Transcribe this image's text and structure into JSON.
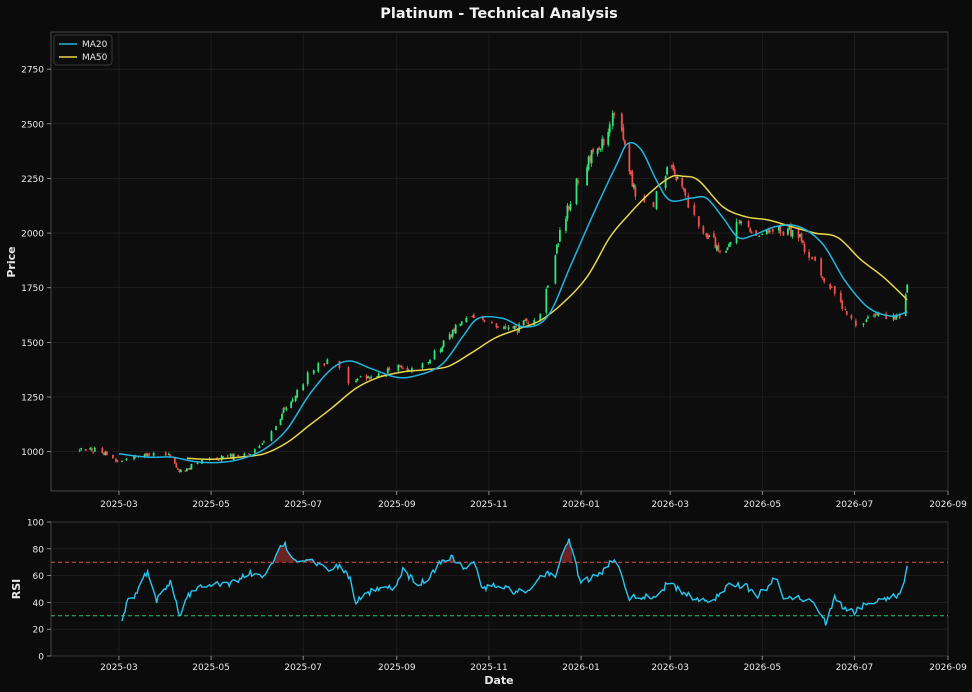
{
  "chart_data": [
    {
      "type": "candlestick",
      "title": "Platinum - Technical Analysis",
      "xlabel": "",
      "ylabel": "Price",
      "xlim": [
        "2025-01-15",
        "2026-09-01"
      ],
      "ylim": [
        820,
        2920
      ],
      "yticks": [
        1000,
        1250,
        1500,
        1750,
        2000,
        2250,
        2500,
        2750
      ],
      "xtick_labels": [
        "2025-03",
        "2025-05",
        "2025-07",
        "2025-09",
        "2025-11",
        "2026-01",
        "2026-03",
        "2026-05",
        "2026-07",
        "2026-09"
      ],
      "xtick_dates": [
        "2025-03-01",
        "2025-05-01",
        "2025-07-01",
        "2025-09-01",
        "2025-11-01",
        "2026-01-01",
        "2026-03-01",
        "2026-05-01",
        "2026-07-01",
        "2026-09-01"
      ],
      "grid": true,
      "legend_position": "top-left",
      "colors": {
        "up": "#2ee87a",
        "down": "#ef4f4f",
        "ma20": "#21b6e0",
        "ma50": "#e8d74a",
        "axes_bg": "#0d0d0d",
        "grid": "#262626",
        "text": "#e8e8e8"
      },
      "price_anchors": [
        [
          "2025-02-02",
          1005
        ],
        [
          "2025-02-15",
          1010
        ],
        [
          "2025-02-28",
          960
        ],
        [
          "2025-03-15",
          985
        ],
        [
          "2025-04-02",
          990
        ],
        [
          "2025-04-10",
          905
        ],
        [
          "2025-04-22",
          945
        ],
        [
          "2025-05-10",
          975
        ],
        [
          "2025-05-25",
          985
        ],
        [
          "2025-06-05",
          1040
        ],
        [
          "2025-06-15",
          1150
        ],
        [
          "2025-06-25",
          1260
        ],
        [
          "2025-07-05",
          1360
        ],
        [
          "2025-07-20",
          1430
        ],
        [
          "2025-08-01",
          1320
        ],
        [
          "2025-08-15",
          1340
        ],
        [
          "2025-09-01",
          1380
        ],
        [
          "2025-09-20",
          1400
        ],
        [
          "2025-10-05",
          1520
        ],
        [
          "2025-10-15",
          1620
        ],
        [
          "2025-10-25",
          1600
        ],
        [
          "2025-11-01",
          1580
        ],
        [
          "2025-11-20",
          1560
        ],
        [
          "2025-12-05",
          1640
        ],
        [
          "2025-12-20",
          2050
        ],
        [
          "2026-01-01",
          2300
        ],
        [
          "2026-01-15",
          2400
        ],
        [
          "2026-01-25",
          2600
        ],
        [
          "2026-02-05",
          2200
        ],
        [
          "2026-02-15",
          2100
        ],
        [
          "2026-03-01",
          2300
        ],
        [
          "2026-03-20",
          2050
        ],
        [
          "2026-04-05",
          1900
        ],
        [
          "2026-04-15",
          2050
        ],
        [
          "2026-04-25",
          2000
        ],
        [
          "2026-05-10",
          2020
        ],
        [
          "2026-05-25",
          1990
        ],
        [
          "2026-06-05",
          1850
        ],
        [
          "2026-06-20",
          1700
        ],
        [
          "2026-07-01",
          1580
        ],
        [
          "2026-07-15",
          1620
        ],
        [
          "2026-08-01",
          1610
        ],
        [
          "2026-08-05",
          1780
        ]
      ],
      "series": [
        {
          "name": "MA20",
          "points": [
            [
              "2025-03-01",
              990
            ],
            [
              "2025-03-20",
              975
            ],
            [
              "2025-04-05",
              975
            ],
            [
              "2025-04-20",
              955
            ],
            [
              "2025-05-05",
              950
            ],
            [
              "2025-05-20",
              965
            ],
            [
              "2025-06-05",
              1010
            ],
            [
              "2025-06-20",
              1100
            ],
            [
              "2025-07-05",
              1260
            ],
            [
              "2025-07-20",
              1380
            ],
            [
              "2025-08-01",
              1415
            ],
            [
              "2025-08-15",
              1380
            ],
            [
              "2025-09-01",
              1340
            ],
            [
              "2025-09-15",
              1350
            ],
            [
              "2025-10-01",
              1400
            ],
            [
              "2025-10-15",
              1530
            ],
            [
              "2025-10-25",
              1610
            ],
            [
              "2025-11-10",
              1610
            ],
            [
              "2025-11-25",
              1570
            ],
            [
              "2025-12-10",
              1620
            ],
            [
              "2025-12-25",
              1850
            ],
            [
              "2026-01-10",
              2100
            ],
            [
              "2026-01-25",
              2320
            ],
            [
              "2026-02-01",
              2410
            ],
            [
              "2026-02-10",
              2380
            ],
            [
              "2026-02-20",
              2240
            ],
            [
              "2026-03-01",
              2150
            ],
            [
              "2026-03-15",
              2160
            ],
            [
              "2026-03-25",
              2160
            ],
            [
              "2026-04-05",
              2070
            ],
            [
              "2026-04-15",
              1980
            ],
            [
              "2026-04-25",
              1990
            ],
            [
              "2026-05-10",
              2030
            ],
            [
              "2026-05-25",
              2030
            ],
            [
              "2026-06-10",
              1950
            ],
            [
              "2026-06-25",
              1780
            ],
            [
              "2026-07-10",
              1660
            ],
            [
              "2026-07-25",
              1620
            ],
            [
              "2026-08-05",
              1640
            ]
          ]
        },
        {
          "name": "MA50",
          "points": [
            [
              "2025-04-15",
              970
            ],
            [
              "2025-05-01",
              965
            ],
            [
              "2025-05-20",
              975
            ],
            [
              "2025-06-05",
              990
            ],
            [
              "2025-06-20",
              1040
            ],
            [
              "2025-07-05",
              1120
            ],
            [
              "2025-07-20",
              1200
            ],
            [
              "2025-08-05",
              1290
            ],
            [
              "2025-08-20",
              1340
            ],
            [
              "2025-09-05",
              1365
            ],
            [
              "2025-09-20",
              1375
            ],
            [
              "2025-10-05",
              1390
            ],
            [
              "2025-10-20",
              1450
            ],
            [
              "2025-11-05",
              1520
            ],
            [
              "2025-11-20",
              1560
            ],
            [
              "2025-12-05",
              1600
            ],
            [
              "2025-12-20",
              1680
            ],
            [
              "2026-01-05",
              1800
            ],
            [
              "2026-01-20",
              1980
            ],
            [
              "2026-02-01",
              2080
            ],
            [
              "2026-02-15",
              2180
            ],
            [
              "2026-03-01",
              2255
            ],
            [
              "2026-03-10",
              2260
            ],
            [
              "2026-03-20",
              2240
            ],
            [
              "2026-04-05",
              2120
            ],
            [
              "2026-04-20",
              2075
            ],
            [
              "2026-05-05",
              2060
            ],
            [
              "2026-05-20",
              2030
            ],
            [
              "2026-06-05",
              2000
            ],
            [
              "2026-06-20",
              1980
            ],
            [
              "2026-07-05",
              1880
            ],
            [
              "2026-07-20",
              1800
            ],
            [
              "2026-08-05",
              1695
            ]
          ]
        }
      ]
    },
    {
      "type": "line",
      "title": "",
      "xlabel": "Date",
      "ylabel": "RSI",
      "xlim": [
        "2025-01-15",
        "2026-09-01"
      ],
      "ylim": [
        0,
        100
      ],
      "yticks": [
        0,
        20,
        40,
        60,
        80,
        100
      ],
      "xtick_labels": [
        "2025-03",
        "2025-05",
        "2025-07",
        "2025-09",
        "2025-11",
        "2026-01",
        "2026-03",
        "2026-05",
        "2026-07",
        "2026-09"
      ],
      "xtick_dates": [
        "2025-03-01",
        "2025-05-01",
        "2025-07-01",
        "2025-09-01",
        "2025-11-01",
        "2026-01-01",
        "2026-03-01",
        "2026-05-01",
        "2026-07-01",
        "2026-09-01"
      ],
      "grid": true,
      "reference_lines": [
        {
          "value": 70,
          "color": "#d9534f",
          "style": "dashed"
        },
        {
          "value": 30,
          "color": "#27c47a",
          "style": "dashed"
        }
      ],
      "colors": {
        "line": "#29c6f0",
        "overbought_fill": "#8b2a2a"
      },
      "series": [
        {
          "name": "",
          "points": [
            [
              "2025-03-01",
              30
            ],
            [
              "2025-03-03",
              24
            ],
            [
              "2025-03-06",
              40
            ],
            [
              "2025-03-12",
              45
            ],
            [
              "2025-03-18",
              62
            ],
            [
              "2025-03-22",
              60
            ],
            [
              "2025-03-26",
              42
            ],
            [
              "2025-03-30",
              50
            ],
            [
              "2025-04-05",
              56
            ],
            [
              "2025-04-10",
              30
            ],
            [
              "2025-04-15",
              45
            ],
            [
              "2025-04-25",
              53
            ],
            [
              "2025-05-05",
              55
            ],
            [
              "2025-05-10",
              52
            ],
            [
              "2025-05-20",
              58
            ],
            [
              "2025-05-28",
              62
            ],
            [
              "2025-06-05",
              58
            ],
            [
              "2025-06-12",
              72
            ],
            [
              "2025-06-18",
              84
            ],
            [
              "2025-06-25",
              72
            ],
            [
              "2025-07-05",
              72
            ],
            [
              "2025-07-15",
              65
            ],
            [
              "2025-07-25",
              67
            ],
            [
              "2025-08-01",
              58
            ],
            [
              "2025-08-05",
              40
            ],
            [
              "2025-08-15",
              48
            ],
            [
              "2025-08-25",
              50
            ],
            [
              "2025-09-01",
              52
            ],
            [
              "2025-09-05",
              65
            ],
            [
              "2025-09-15",
              52
            ],
            [
              "2025-09-25",
              62
            ],
            [
              "2025-10-01",
              72
            ],
            [
              "2025-10-08",
              74
            ],
            [
              "2025-10-15",
              65
            ],
            [
              "2025-10-22",
              70
            ],
            [
              "2025-10-28",
              50
            ],
            [
              "2025-11-05",
              53
            ],
            [
              "2025-11-12",
              50
            ],
            [
              "2025-11-20",
              48
            ],
            [
              "2025-11-28",
              47
            ],
            [
              "2025-12-05",
              58
            ],
            [
              "2025-12-10",
              63
            ],
            [
              "2025-12-15",
              58
            ],
            [
              "2025-12-20",
              80
            ],
            [
              "2025-12-24",
              86
            ],
            [
              "2025-12-28",
              70
            ],
            [
              "2026-01-01",
              55
            ],
            [
              "2026-01-08",
              58
            ],
            [
              "2026-01-15",
              62
            ],
            [
              "2026-01-20",
              70
            ],
            [
              "2026-01-25",
              73
            ],
            [
              "2026-02-01",
              44
            ],
            [
              "2026-02-10",
              44
            ],
            [
              "2026-02-20",
              45
            ],
            [
              "2026-02-28",
              55
            ],
            [
              "2026-03-08",
              48
            ],
            [
              "2026-03-15",
              44
            ],
            [
              "2026-03-25",
              40
            ],
            [
              "2026-04-02",
              45
            ],
            [
              "2026-04-10",
              55
            ],
            [
              "2026-04-20",
              52
            ],
            [
              "2026-04-28",
              45
            ],
            [
              "2026-05-05",
              52
            ],
            [
              "2026-05-10",
              60
            ],
            [
              "2026-05-15",
              45
            ],
            [
              "2026-05-25",
              43
            ],
            [
              "2026-06-05",
              40
            ],
            [
              "2026-06-12",
              25
            ],
            [
              "2026-06-18",
              43
            ],
            [
              "2026-06-25",
              35
            ],
            [
              "2026-07-01",
              33
            ],
            [
              "2026-07-08",
              38
            ],
            [
              "2026-07-15",
              42
            ],
            [
              "2026-07-22",
              43
            ],
            [
              "2026-07-28",
              45
            ],
            [
              "2026-08-01",
              48
            ],
            [
              "2026-08-05",
              65
            ]
          ]
        }
      ]
    }
  ]
}
